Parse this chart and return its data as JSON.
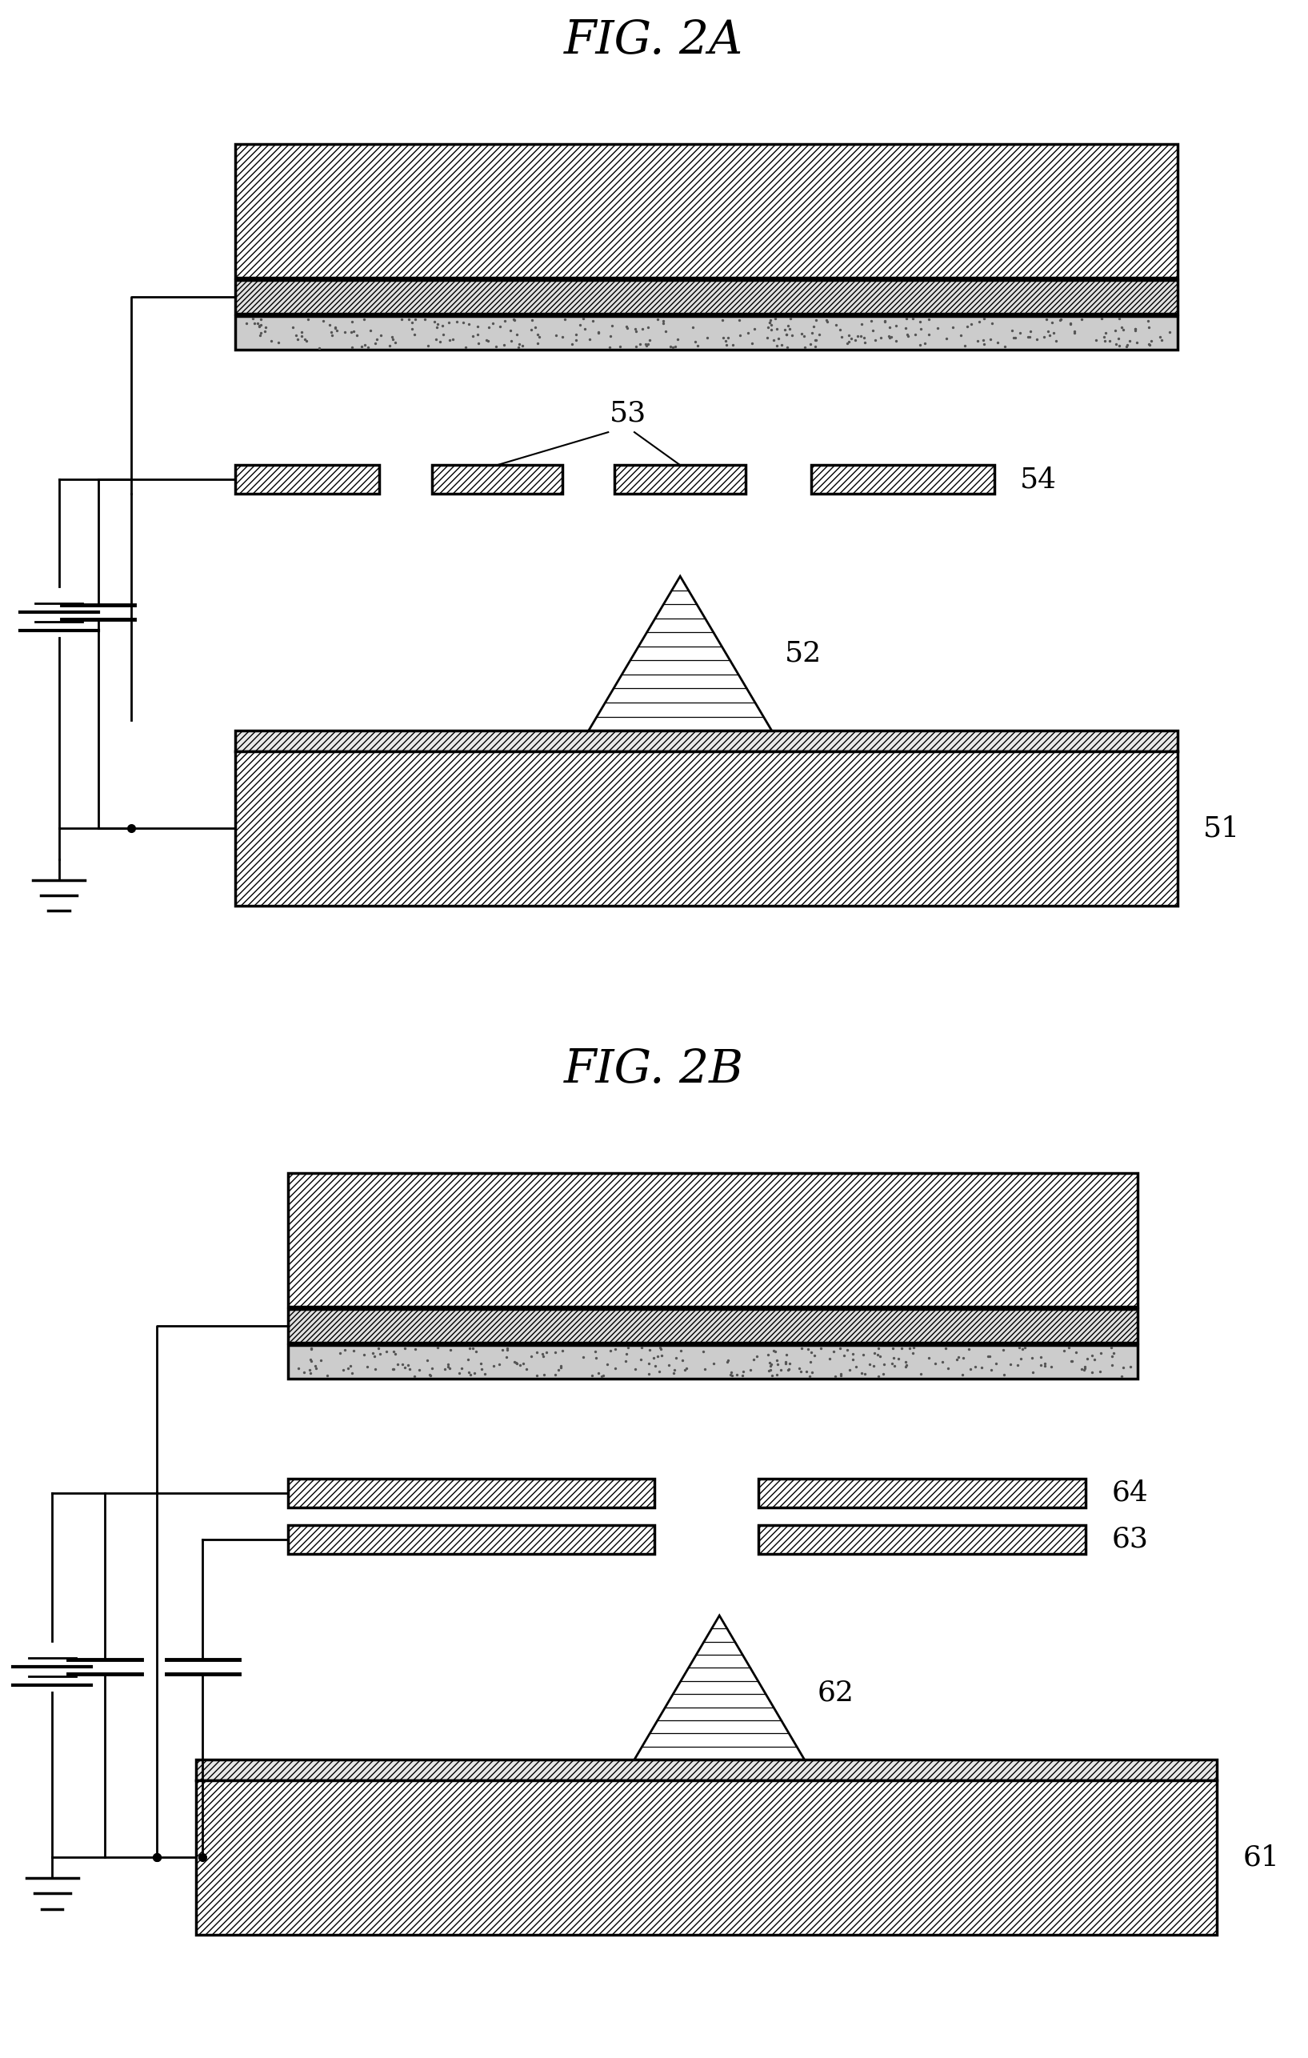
{
  "fig_title_a": "FIG. 2A",
  "fig_title_b": "FIG. 2B",
  "bg_color": "#ffffff",
  "font_size_title": 42,
  "font_size_label": 26
}
